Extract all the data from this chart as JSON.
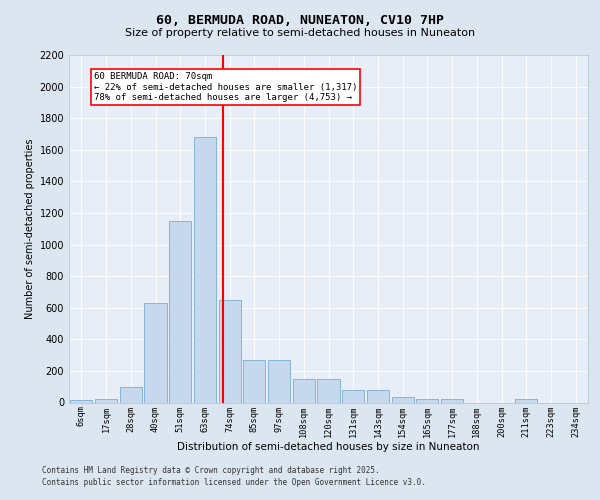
{
  "title1": "60, BERMUDA ROAD, NUNEATON, CV10 7HP",
  "title2": "Size of property relative to semi-detached houses in Nuneaton",
  "xlabel": "Distribution of semi-detached houses by size in Nuneaton",
  "ylabel": "Number of semi-detached properties",
  "bar_labels": [
    "6sqm",
    "17sqm",
    "28sqm",
    "40sqm",
    "51sqm",
    "63sqm",
    "74sqm",
    "85sqm",
    "97sqm",
    "108sqm",
    "120sqm",
    "131sqm",
    "143sqm",
    "154sqm",
    "165sqm",
    "177sqm",
    "188sqm",
    "200sqm",
    "211sqm",
    "223sqm",
    "234sqm"
  ],
  "bar_values": [
    15,
    20,
    100,
    630,
    1150,
    1680,
    650,
    270,
    270,
    150,
    150,
    80,
    80,
    35,
    20,
    20,
    0,
    0,
    20,
    0,
    0
  ],
  "bar_color": "#c5d8ee",
  "bar_edgecolor": "#7aadd4",
  "annotation_text": "60 BERMUDA ROAD: 70sqm\n← 22% of semi-detached houses are smaller (1,317)\n78% of semi-detached houses are larger (4,753) →",
  "vline_pos": 5.72,
  "ylim": [
    0,
    2200
  ],
  "yticks": [
    0,
    200,
    400,
    600,
    800,
    1000,
    1200,
    1400,
    1600,
    1800,
    2000,
    2200
  ],
  "footer1": "Contains HM Land Registry data © Crown copyright and database right 2025.",
  "footer2": "Contains public sector information licensed under the Open Government Licence v3.0.",
  "bg_color": "#dce6f0",
  "plot_bg_color": "#e8eef7"
}
